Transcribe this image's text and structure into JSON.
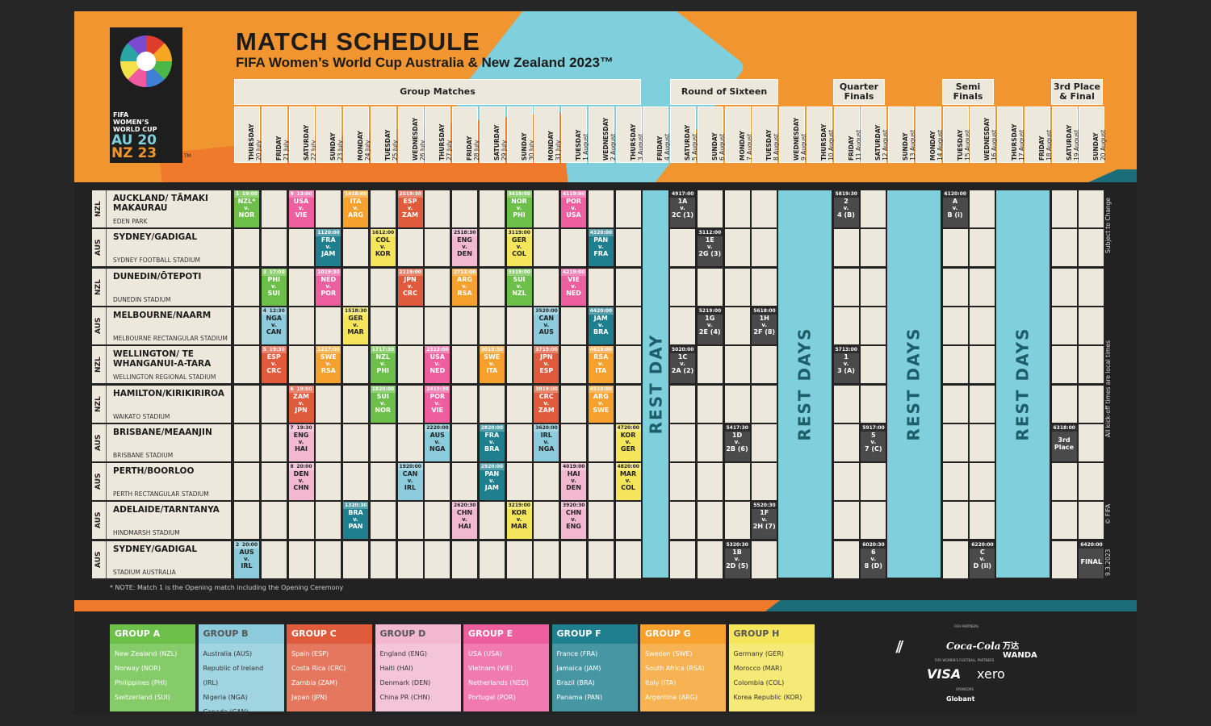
{
  "title": "MATCH SCHEDULE",
  "subtitle": "FIFA Women’s World Cup Australia & New Zealand 2023™",
  "logo": {
    "line1": "FIFA",
    "line2": "WOMEN’S",
    "line3": "WORLD CUP",
    "au": "AU 20",
    "nz": "NZ 23",
    "tm": "TM"
  },
  "stages": {
    "group": "Group Matches",
    "r16": "Round of Sixteen",
    "qf": "Quarter Finals",
    "sf": "Semi Finals",
    "final": "3rd Place & Final"
  },
  "days": [
    [
      "THURSDAY",
      "20 July"
    ],
    [
      "FRIDAY",
      "21 July"
    ],
    [
      "SATURDAY",
      "22 July"
    ],
    [
      "SUNDAY",
      "23 July"
    ],
    [
      "MONDAY",
      "24 July"
    ],
    [
      "TUESDAY",
      "25 July"
    ],
    [
      "WEDNESDAY",
      "26 July"
    ],
    [
      "THURSDAY",
      "27 July"
    ],
    [
      "FRIDAY",
      "28 July"
    ],
    [
      "SATURDAY",
      "29 July"
    ],
    [
      "SUNDAY",
      "30 July"
    ],
    [
      "MONDAY",
      "31 July"
    ],
    [
      "TUESDAY",
      "1 August"
    ],
    [
      "WEDNESDAY",
      "2 August"
    ],
    [
      "THURSDAY",
      "3 August"
    ],
    [
      "FRIDAY",
      "4 August"
    ],
    [
      "SATURDAY",
      "5 August"
    ],
    [
      "SUNDAY",
      "6 August"
    ],
    [
      "MONDAY",
      "7 August"
    ],
    [
      "TUESDAY",
      "8 August"
    ],
    [
      "WEDNESDAY",
      "9 August"
    ],
    [
      "THURSDAY",
      "10 August"
    ],
    [
      "FRIDAY",
      "11 August"
    ],
    [
      "SATURDAY",
      "12 August"
    ],
    [
      "SUNDAY",
      "13 August"
    ],
    [
      "MONDAY",
      "14 August"
    ],
    [
      "TUESDAY",
      "15 August"
    ],
    [
      "WEDNESDAY",
      "16 August"
    ],
    [
      "THURSDAY",
      "17 August"
    ],
    [
      "FRIDAY",
      "18 August"
    ],
    [
      "SATURDAY",
      "19 August"
    ],
    [
      "SUNDAY",
      "20 August"
    ]
  ],
  "venues": [
    {
      "country": "NZL",
      "name": "AUCKLAND/ TĀMAKI MAKAURAU",
      "stadium": "EDEN PARK"
    },
    {
      "country": "AUS",
      "name": "SYDNEY/GADIGAL",
      "stadium": "SYDNEY FOOTBALL STADIUM"
    },
    {
      "country": "NZL",
      "name": "DUNEDIN/ŌTEPOTI",
      "stadium": "DUNEDIN STADIUM"
    },
    {
      "country": "AUS",
      "name": "MELBOURNE/NAARM",
      "stadium": "MELBOURNE RECTANGULAR STADIUM"
    },
    {
      "country": "NZL",
      "name": "WELLINGTON/ TE WHANGANUI-A-TARA",
      "stadium": "WELLINGTON REGIONAL STADIUM"
    },
    {
      "country": "NZL",
      "name": "HAMILTON/KIRIKIRIROA",
      "stadium": "WAIKATO STADIUM"
    },
    {
      "country": "AUS",
      "name": "BRISBANE/MEAANJIN",
      "stadium": "BRISBANE STADIUM"
    },
    {
      "country": "AUS",
      "name": "PERTH/BOORLOO",
      "stadium": "PERTH RECTANGULAR STADIUM"
    },
    {
      "country": "AUS",
      "name": "ADELAIDE/TARNTANYA",
      "stadium": "HINDMARSH STADIUM"
    },
    {
      "country": "AUS",
      "name": "SYDNEY/GADIGAL",
      "stadium": "STADIUM AUSTRALIA"
    }
  ],
  "rest": {
    "day": "REST DAY",
    "days": "REST DAYS"
  },
  "colors": {
    "A": "#6cc04a",
    "B": "#8ccbdb",
    "C": "#e05a3c",
    "D": "#f2b8d0",
    "E": "#ee5fa0",
    "F": "#1f7f8f",
    "G": "#f6a12e",
    "H": "#f5e55a",
    "KO": "#4a4a4a"
  },
  "matches": [
    {
      "r": 0,
      "d": 0,
      "no": "1",
      "time": "19:00",
      "a": "NZL*",
      "b": "NOR",
      "g": "A"
    },
    {
      "r": 9,
      "d": 0,
      "no": "2",
      "time": "20:00",
      "a": "AUS",
      "b": "IRL",
      "g": "B"
    },
    {
      "r": 2,
      "d": 1,
      "no": "3",
      "time": "17:00",
      "a": "PHI",
      "b": "SUI",
      "g": "A"
    },
    {
      "r": 3,
      "d": 1,
      "no": "4",
      "time": "12:30",
      "a": "NGA",
      "b": "CAN",
      "g": "B"
    },
    {
      "r": 4,
      "d": 1,
      "no": "5",
      "time": "19:30",
      "a": "ESP",
      "b": "CRC",
      "g": "C"
    },
    {
      "r": 5,
      "d": 2,
      "no": "6",
      "time": "19:00",
      "a": "ZAM",
      "b": "JPN",
      "g": "C"
    },
    {
      "r": 6,
      "d": 2,
      "no": "7",
      "time": "19:30",
      "a": "ENG",
      "b": "HAI",
      "g": "D"
    },
    {
      "r": 7,
      "d": 2,
      "no": "8",
      "time": "20:00",
      "a": "DEN",
      "b": "CHN",
      "g": "D"
    },
    {
      "r": 0,
      "d": 2,
      "no": "9",
      "time": "13:00",
      "a": "USA",
      "b": "VIE",
      "g": "E"
    },
    {
      "r": 2,
      "d": 3,
      "no": "10",
      "time": "19:30",
      "a": "NED",
      "b": "POR",
      "g": "E"
    },
    {
      "r": 1,
      "d": 3,
      "no": "11",
      "time": "20:00",
      "a": "FRA",
      "b": "JAM",
      "g": "F"
    },
    {
      "r": 4,
      "d": 3,
      "no": "12",
      "time": "17:00",
      "a": "SWE",
      "b": "RSA",
      "g": "G"
    },
    {
      "r": 8,
      "d": 4,
      "no": "13",
      "time": "20:30",
      "a": "BRA",
      "b": "PAN",
      "g": "F"
    },
    {
      "r": 0,
      "d": 4,
      "no": "14",
      "time": "18:00",
      "a": "ITA",
      "b": "ARG",
      "g": "G"
    },
    {
      "r": 3,
      "d": 4,
      "no": "15",
      "time": "18:30",
      "a": "GER",
      "b": "MAR",
      "g": "H"
    },
    {
      "r": 1,
      "d": 5,
      "no": "16",
      "time": "12:00",
      "a": "COL",
      "b": "KOR",
      "g": "H"
    },
    {
      "r": 4,
      "d": 5,
      "no": "17",
      "time": "17:30",
      "a": "NZL",
      "b": "PHI",
      "g": "A"
    },
    {
      "r": 5,
      "d": 5,
      "no": "18",
      "time": "20:00",
      "a": "SUI",
      "b": "NOR",
      "g": "A"
    },
    {
      "r": 7,
      "d": 6,
      "no": "19",
      "time": "20:00",
      "a": "CAN",
      "b": "IRL",
      "g": "B"
    },
    {
      "r": 0,
      "d": 6,
      "no": "20",
      "time": "19:30",
      "a": "ESP",
      "b": "ZAM",
      "g": "C"
    },
    {
      "r": 2,
      "d": 6,
      "no": "21",
      "time": "19:00",
      "a": "JPN",
      "b": "CRC",
      "g": "C"
    },
    {
      "r": 6,
      "d": 7,
      "no": "22",
      "time": "20:00",
      "a": "AUS",
      "b": "NGA",
      "g": "B"
    },
    {
      "r": 4,
      "d": 7,
      "no": "23",
      "time": "13:00",
      "a": "USA",
      "b": "NED",
      "g": "E"
    },
    {
      "r": 5,
      "d": 7,
      "no": "24",
      "time": "19:30",
      "a": "POR",
      "b": "VIE",
      "g": "E"
    },
    {
      "r": 1,
      "d": 8,
      "no": "25",
      "time": "18:30",
      "a": "ENG",
      "b": "DEN",
      "g": "D"
    },
    {
      "r": 8,
      "d": 8,
      "no": "26",
      "time": "20:30",
      "a": "CHN",
      "b": "HAI",
      "g": "D"
    },
    {
      "r": 2,
      "d": 8,
      "no": "27",
      "time": "12:00",
      "a": "ARG",
      "b": "RSA",
      "g": "G"
    },
    {
      "r": 6,
      "d": 9,
      "no": "28",
      "time": "20:00",
      "a": "FRA",
      "b": "BRA",
      "g": "F"
    },
    {
      "r": 7,
      "d": 9,
      "no": "29",
      "time": "20:00",
      "a": "PAN",
      "b": "JAM",
      "g": "F"
    },
    {
      "r": 4,
      "d": 9,
      "no": "30",
      "time": "19:30",
      "a": "SWE",
      "b": "ITA",
      "g": "G"
    },
    {
      "r": 1,
      "d": 10,
      "no": "31",
      "time": "19:00",
      "a": "GER",
      "b": "COL",
      "g": "H"
    },
    {
      "r": 8,
      "d": 10,
      "no": "32",
      "time": "19:00",
      "a": "KOR",
      "b": "MAR",
      "g": "H"
    },
    {
      "r": 2,
      "d": 10,
      "no": "33",
      "time": "19:00",
      "a": "SUI",
      "b": "NZL",
      "g": "A"
    },
    {
      "r": 0,
      "d": 10,
      "no": "34",
      "time": "19:00",
      "a": "NOR",
      "b": "PHI",
      "g": "A"
    },
    {
      "r": 3,
      "d": 11,
      "no": "35",
      "time": "20:00",
      "a": "CAN",
      "b": "AUS",
      "g": "B"
    },
    {
      "r": 6,
      "d": 11,
      "no": "36",
      "time": "20:00",
      "a": "IRL",
      "b": "NGA",
      "g": "B"
    },
    {
      "r": 4,
      "d": 11,
      "no": "37",
      "time": "19:00",
      "a": "JPN",
      "b": "ESP",
      "g": "C"
    },
    {
      "r": 5,
      "d": 11,
      "no": "38",
      "time": "19:00",
      "a": "CRC",
      "b": "ZAM",
      "g": "C"
    },
    {
      "r": 8,
      "d": 12,
      "no": "39",
      "time": "20:30",
      "a": "CHN",
      "b": "ENG",
      "g": "D"
    },
    {
      "r": 7,
      "d": 12,
      "no": "40",
      "time": "19:00",
      "a": "HAI",
      "b": "DEN",
      "g": "D"
    },
    {
      "r": 0,
      "d": 12,
      "no": "41",
      "time": "19:00",
      "a": "POR",
      "b": "USA",
      "g": "E"
    },
    {
      "r": 2,
      "d": 12,
      "no": "42",
      "time": "19:00",
      "a": "VIE",
      "b": "NED",
      "g": "E"
    },
    {
      "r": 1,
      "d": 13,
      "no": "43",
      "time": "20:00",
      "a": "PAN",
      "b": "FRA",
      "g": "F"
    },
    {
      "r": 3,
      "d": 13,
      "no": "44",
      "time": "20:00",
      "a": "JAM",
      "b": "BRA",
      "g": "F"
    },
    {
      "r": 5,
      "d": 13,
      "no": "45",
      "time": "19:00",
      "a": "ARG",
      "b": "SWE",
      "g": "G"
    },
    {
      "r": 4,
      "d": 13,
      "no": "46",
      "time": "19:00",
      "a": "RSA",
      "b": "ITA",
      "g": "G"
    },
    {
      "r": 6,
      "d": 14,
      "no": "47",
      "time": "20:00",
      "a": "KOR",
      "b": "GER",
      "g": "H"
    },
    {
      "r": 7,
      "d": 14,
      "no": "48",
      "time": "20:00",
      "a": "MAR",
      "b": "COL",
      "g": "H"
    },
    {
      "r": 0,
      "d": 16,
      "no": "49",
      "time": "17:00",
      "a": "1A",
      "b": "2C (1)",
      "g": "KO"
    },
    {
      "r": 4,
      "d": 16,
      "no": "50",
      "time": "20:00",
      "a": "1C",
      "b": "2A (2)",
      "g": "KO"
    },
    {
      "r": 1,
      "d": 17,
      "no": "51",
      "time": "12:00",
      "a": "1E",
      "b": "2G (3)",
      "g": "KO"
    },
    {
      "r": 3,
      "d": 17,
      "no": "52",
      "time": "19:00",
      "a": "1G",
      "b": "2E (4)",
      "g": "KO"
    },
    {
      "r": 9,
      "d": 18,
      "no": "53",
      "time": "20:30",
      "a": "1B",
      "b": "2D (5)",
      "g": "KO"
    },
    {
      "r": 6,
      "d": 18,
      "no": "54",
      "time": "17:30",
      "a": "1D",
      "b": "2B (6)",
      "g": "KO"
    },
    {
      "r": 8,
      "d": 19,
      "no": "55",
      "time": "20:30",
      "a": "1F",
      "b": "2H (7)",
      "g": "KO"
    },
    {
      "r": 3,
      "d": 19,
      "no": "56",
      "time": "18:00",
      "a": "1H",
      "b": "2F (8)",
      "g": "KO"
    },
    {
      "r": 4,
      "d": 22,
      "no": "57",
      "time": "13:00",
      "a": "1",
      "b": "3 (A)",
      "g": "KO"
    },
    {
      "r": 0,
      "d": 22,
      "no": "58",
      "time": "19:30",
      "a": "2",
      "b": "4 (B)",
      "g": "KO"
    },
    {
      "r": 6,
      "d": 23,
      "no": "59",
      "time": "17:00",
      "a": "5",
      "b": "7 (C)",
      "g": "KO"
    },
    {
      "r": 9,
      "d": 23,
      "no": "60",
      "time": "20:30",
      "a": "6",
      "b": "8 (D)",
      "g": "KO"
    },
    {
      "r": 0,
      "d": 26,
      "no": "61",
      "time": "20:00",
      "a": "A",
      "b": "B (i)",
      "g": "KO"
    },
    {
      "r": 9,
      "d": 27,
      "no": "62",
      "time": "20:00",
      "a": "C",
      "b": "D (ii)",
      "g": "KO"
    },
    {
      "r": 6,
      "d": 30,
      "no": "63",
      "time": "18:00",
      "a": "3rd",
      "b": "Place",
      "g": "KO",
      "single": true
    },
    {
      "r": 9,
      "d": 31,
      "no": "64",
      "time": "20:00",
      "a": "FINAL",
      "b": "",
      "g": "KO",
      "single": true
    }
  ],
  "vs": "v.",
  "note": "* NOTE: Match 1 is the Opening match including the Opening Ceremony",
  "side": {
    "a": "Subject to Change",
    "b": "All kick-off times are local times",
    "c": "© FIFA",
    "d": "9.3.2023"
  },
  "groups": [
    {
      "key": "A",
      "title": "GROUP A",
      "teams": [
        "New Zealand (NZL)",
        "Norway (NOR)",
        "Philippines (PHI)",
        "Switzerland (SUI)"
      ]
    },
    {
      "key": "B",
      "title": "GROUP B",
      "teams": [
        "Australia (AUS)",
        "Republic of Ireland (IRL)",
        "Nigeria (NGA)",
        "Canada (CAN)"
      ]
    },
    {
      "key": "C",
      "title": "GROUP C",
      "teams": [
        "Spain (ESP)",
        "Costa Rica (CRC)",
        "Zambia (ZAM)",
        "Japan (JPN)"
      ]
    },
    {
      "key": "D",
      "title": "GROUP D",
      "teams": [
        "England (ENG)",
        "Haiti (HAI)",
        "Denmark (DEN)",
        "China PR (CHN)"
      ]
    },
    {
      "key": "E",
      "title": "GROUP E",
      "teams": [
        "USA (USA)",
        "Vietnam (VIE)",
        "Netherlands (NED)",
        "Portugal (POR)"
      ]
    },
    {
      "key": "F",
      "title": "GROUP F",
      "teams": [
        "France (FRA)",
        "Jamaica (JAM)",
        "Brazil (BRA)",
        "Panama (PAN)"
      ]
    },
    {
      "key": "G",
      "title": "GROUP G",
      "teams": [
        "Sweden (SWE)",
        "South Africa (RSA)",
        "Italy (ITA)",
        "Argentina (ARG)"
      ]
    },
    {
      "key": "H",
      "title": "GROUP H",
      "teams": [
        "Germany (GER)",
        "Morocco (MAR)",
        "Colombia (COL)",
        "Korea Republic (KOR)"
      ]
    }
  ],
  "sponsors": {
    "partners": "FIFA PARTNERS",
    "adidas": "adidas",
    "coke": "Coca-Cola",
    "wanda": "万达 WANDA",
    "wwc": "FIFA WOMEN'S FOOTBALL PARTNERS",
    "visa": "VISA",
    "xero": "xero",
    "sponsors": "SPONSORS",
    "globant": "Globant"
  }
}
